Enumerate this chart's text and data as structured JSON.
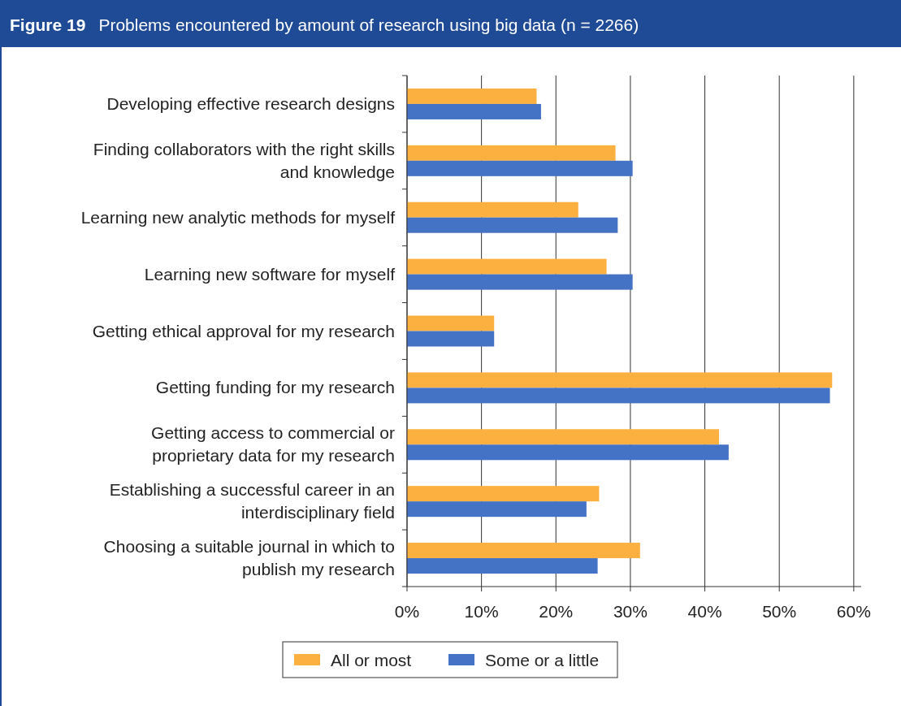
{
  "chart_data": {
    "type": "bar",
    "orientation": "horizontal",
    "title": "Figure 19  Problems encountered by amount of research using big data (n = 2266)",
    "categories": [
      "Developing effective research designs",
      "Finding collaborators with the right skills\nand knowledge",
      "Learning new analytic methods for myself",
      "Learning new software for myself",
      "Getting ethical approval for my research",
      "Getting funding for my research",
      "Getting access to commercial or\nproprietary data for my research",
      "Establishing a successful career in an\ninterdisciplinary field",
      "Choosing a suitable journal in which to\npublish my research"
    ],
    "series": [
      {
        "name": "All or most",
        "color": "#fbb040",
        "values": [
          17.4,
          28.0,
          23.0,
          26.8,
          11.7,
          57.1,
          41.9,
          25.8,
          31.3
        ]
      },
      {
        "name": "Some or a little",
        "color": "#4472c4",
        "values": [
          18.0,
          30.3,
          28.3,
          30.3,
          11.7,
          56.8,
          43.2,
          24.1,
          25.6
        ]
      }
    ],
    "xlim": [
      0,
      61
    ],
    "xticks": [
      {
        "value": 0,
        "label": "0%"
      },
      {
        "value": 10,
        "label": "10%"
      },
      {
        "value": 20,
        "label": "20%"
      },
      {
        "value": 30,
        "label": "30%"
      },
      {
        "value": 40,
        "label": "40%"
      },
      {
        "value": 50,
        "label": "50%"
      },
      {
        "value": 60,
        "label": "60%"
      }
    ],
    "grid": "x",
    "legend": "bottom"
  }
}
